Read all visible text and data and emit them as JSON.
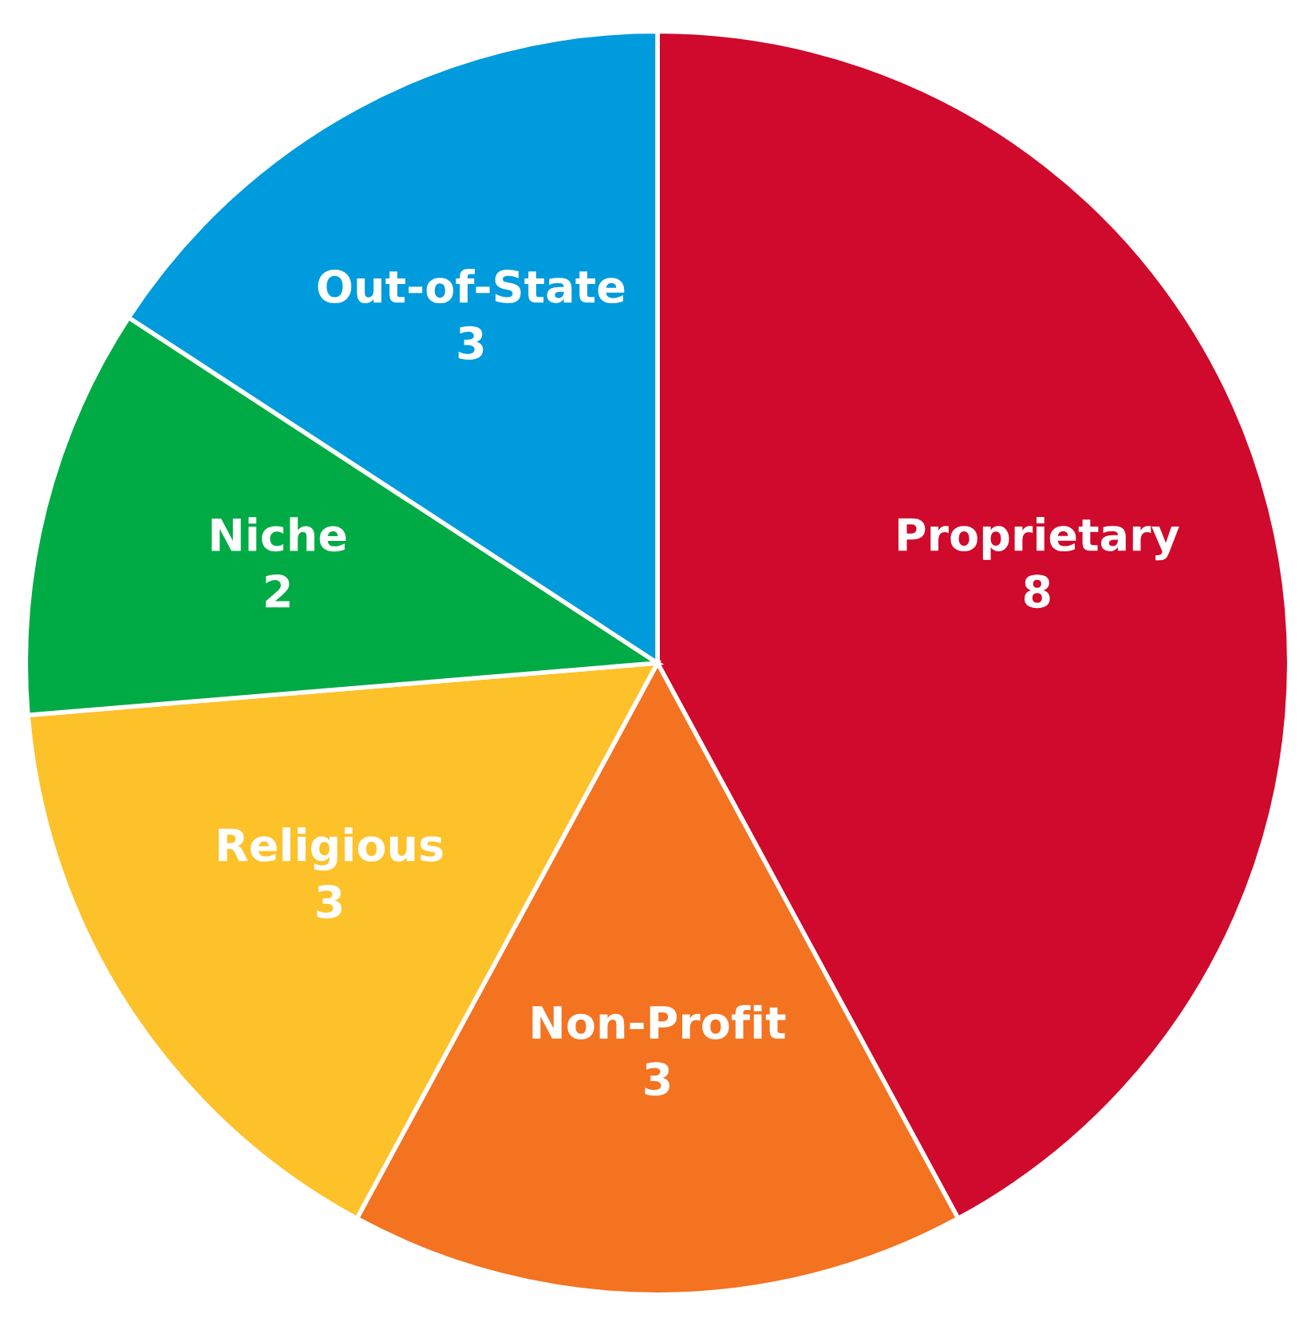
{
  "chart_data": {
    "type": "pie",
    "categories": [
      "Proprietary",
      "Non-Profit",
      "Religious",
      "Niche",
      "Out-of-State"
    ],
    "values": [
      8,
      3,
      3,
      2,
      3
    ],
    "colors": [
      "#cf0a2c",
      "#f37321",
      "#fdc12a",
      "#00ab45",
      "#009bdc"
    ],
    "data_labels": true
  }
}
